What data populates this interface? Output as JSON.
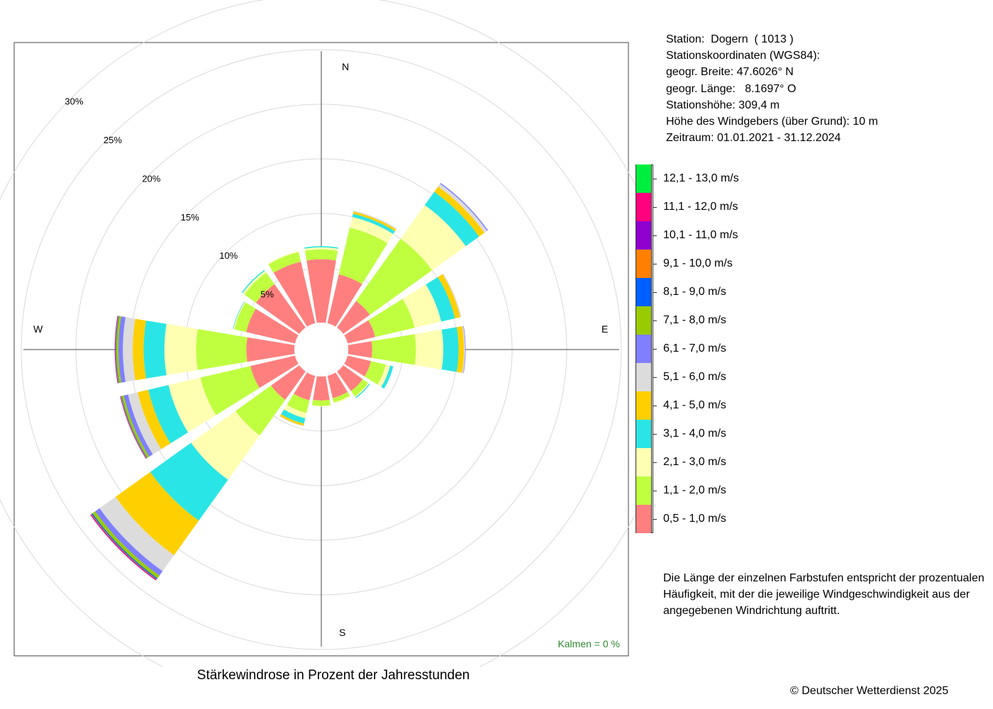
{
  "chart_data": {
    "type": "windrose",
    "title": "Stärkewindrose in Prozent der Jahresstunden",
    "directions": [
      "N",
      "NNE",
      "NE",
      "ENE",
      "E",
      "ESE",
      "SE",
      "SSE",
      "S",
      "SSW",
      "SW",
      "WSW",
      "W",
      "WNW",
      "NW",
      "NNW"
    ],
    "direction_labels": [
      "N",
      "E",
      "S",
      "W"
    ],
    "ring_labels": [
      "5%",
      "10%",
      "15%",
      "20%",
      "25%",
      "30%"
    ],
    "ring_values": [
      5,
      10,
      15,
      20,
      25,
      30
    ],
    "calm": "Kalmen  =  0 %",
    "bins": [
      {
        "label": "0,5 - 1,0 m/s",
        "color": "#ff7f7f"
      },
      {
        "label": "1,1 - 2,0 m/s",
        "color": "#bfff3f"
      },
      {
        "label": "2,1 - 3,0 m/s",
        "color": "#ffffb2"
      },
      {
        "label": "3,1 - 4,0 m/s",
        "color": "#2ae5e5"
      },
      {
        "label": "4,1 - 5,0 m/s",
        "color": "#ffd000"
      },
      {
        "label": "5,1 - 6,0 m/s",
        "color": "#dcdcdc"
      },
      {
        "label": "6,1 - 7,0 m/s",
        "color": "#7f7fff"
      },
      {
        "label": "7,1 - 8,0 m/s",
        "color": "#99cc00"
      },
      {
        "label": "8,1 - 9,0 m/s",
        "color": "#005fff"
      },
      {
        "label": "9,1 - 10,0 m/s",
        "color": "#ff8000"
      },
      {
        "label": "10,1 - 11,0 m/s",
        "color": "#8f00cf"
      },
      {
        "label": "11,1 - 12,0 m/s",
        "color": "#ff007f"
      },
      {
        "label": "12,1 - 13,0 m/s",
        "color": "#00ef3f"
      }
    ],
    "values": [
      [
        5.8,
        0.9,
        0.2,
        0.1,
        0,
        0,
        0,
        0,
        0,
        0,
        0,
        0,
        0
      ],
      [
        4.6,
        4.4,
        1.0,
        0.3,
        0.2,
        0.1,
        0,
        0,
        0,
        0,
        0,
        0,
        0
      ],
      [
        3.0,
        7.0,
        3.8,
        1.5,
        0.6,
        0.3,
        0.1,
        0,
        0,
        0,
        0,
        0,
        0
      ],
      [
        2.6,
        3.7,
        2.5,
        1.3,
        0.5,
        0.1,
        0,
        0,
        0,
        0,
        0,
        0,
        0
      ],
      [
        2.2,
        4.0,
        2.5,
        1.4,
        0.5,
        0.1,
        0.05,
        0,
        0,
        0,
        0,
        0,
        0
      ],
      [
        2.2,
        1.4,
        0.4,
        0.3,
        0,
        0,
        0,
        0,
        0,
        0,
        0,
        0,
        0
      ],
      [
        2.2,
        0.6,
        0.1,
        0.1,
        0,
        0,
        0,
        0,
        0,
        0,
        0,
        0,
        0
      ],
      [
        2.1,
        0.4,
        0.1,
        0,
        0,
        0,
        0,
        0,
        0,
        0,
        0,
        0,
        0
      ],
      [
        2.2,
        0.5,
        0.05,
        0,
        0,
        0,
        0,
        0,
        0,
        0,
        0,
        0,
        0
      ],
      [
        2.3,
        1.2,
        0.5,
        0.5,
        0.2,
        0.05,
        0,
        0,
        0,
        0,
        0,
        0,
        0
      ],
      [
        3.2,
        4.0,
        5.0,
        4.6,
        3.9,
        1.8,
        0.5,
        0.3,
        0.1,
        0.05,
        0.05,
        0.05,
        0
      ],
      [
        4.2,
        4.7,
        3.0,
        1.9,
        1.0,
        0.9,
        0.4,
        0.2,
        0.05,
        0.05,
        0.05,
        0,
        0
      ],
      [
        4.4,
        4.6,
        2.9,
        1.9,
        1.0,
        0.9,
        0.4,
        0.2,
        0.05,
        0.05,
        0.05,
        0,
        0
      ],
      [
        4.6,
        1.1,
        0.1,
        0.05,
        0,
        0,
        0,
        0,
        0,
        0,
        0,
        0,
        0
      ],
      [
        4.9,
        1.3,
        0.2,
        0.1,
        0,
        0,
        0,
        0,
        0,
        0,
        0,
        0,
        0
      ],
      [
        5.8,
        0.9,
        0.1,
        0,
        0,
        0,
        0,
        0,
        0,
        0,
        0,
        0,
        0
      ]
    ]
  },
  "station": {
    "line1": "Station:  Dogern  ( 1013 )",
    "line2": "Stationskoordinaten (WGS84):",
    "line3": "geogr. Breite: 47.6026° N",
    "line4": "geogr. Länge:   8.1697° O",
    "line5": "Stationshöhe: 309,4 m",
    "line6": "Höhe des Windgebers (über Grund): 10 m",
    "line7": "Zeitraum: 01.01.2021 - 31.12.2024"
  },
  "note": "Die Länge der einzelnen Farbstufen entspricht der prozentualen Häufigkeit, mit der die jeweilige Windgeschwindigkeit aus der angegebenen Windrichtung auftritt.",
  "copyright": "© Deutscher Wetterdienst  2025"
}
